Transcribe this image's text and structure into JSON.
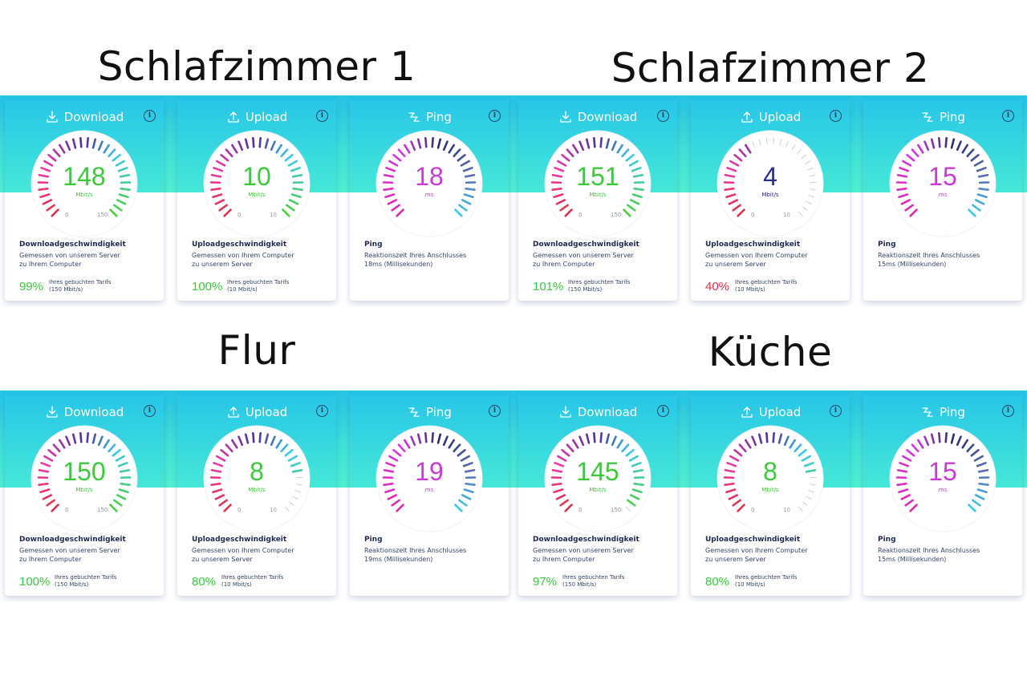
{
  "colors": {
    "green": "#3cc93c",
    "red": "#e0334a",
    "navy": "#2a2f8f",
    "magenta": "#c93ad6",
    "cyan": "#36c6e8",
    "text_dark": "#1d2b4f"
  },
  "rooms": [
    {
      "title": "Schlafzimmer 1",
      "cards": [
        {
          "type": "download",
          "label": "Download",
          "icon": "download-icon",
          "value": "148",
          "unit": "Mbit/s",
          "min": "0",
          "max": "150",
          "fraction": 0.99,
          "color": "#3cc93c",
          "title": "Downloadgeschwindigkeit",
          "desc": [
            "Gemessen von unserem Server",
            "zu Ihrem Computer"
          ],
          "pct": "99%",
          "pct_color": "#3cc93c",
          "tarif": [
            "Ihres gebuchten Tarifs",
            "(150 Mbit/s)"
          ]
        },
        {
          "type": "upload",
          "label": "Upload",
          "icon": "upload-icon",
          "value": "10",
          "unit": "Mbit/s",
          "min": "0",
          "max": "10",
          "fraction": 1.0,
          "color": "#3cc93c",
          "title": "Uploadgeschwindigkeit",
          "desc": [
            "Gemessen von Ihrem Computer",
            "zu unserem Server"
          ],
          "pct": "100%",
          "pct_color": "#3cc93c",
          "tarif": [
            "Ihres gebuchten Tarifs",
            "(10 Mbit/s)"
          ]
        },
        {
          "type": "ping",
          "label": "Ping",
          "icon": "ping-icon",
          "value": "18",
          "unit": "ms",
          "color": "#c93ad6",
          "title": "Ping",
          "desc": [
            "Reaktionszeit Ihres Anschlusses",
            "18ms (Millisekunden)"
          ]
        }
      ]
    },
    {
      "title": "Schlafzimmer 2",
      "cards": [
        {
          "type": "download",
          "label": "Download",
          "icon": "download-icon",
          "value": "151",
          "unit": "Mbit/s",
          "min": "0",
          "max": "150",
          "fraction": 1.0,
          "color": "#3cc93c",
          "title": "Downloadgeschwindigkeit",
          "desc": [
            "Gemessen von unserem Server",
            "zu Ihrem Computer"
          ],
          "pct": "101%",
          "pct_color": "#3cc93c",
          "tarif": [
            "Ihres gebuchten Tarifs",
            "(150 Mbit/s)"
          ]
        },
        {
          "type": "upload",
          "label": "Upload",
          "icon": "upload-icon",
          "value": "4",
          "unit": "Mbit/s",
          "min": "0",
          "max": "10",
          "fraction": 0.4,
          "color": "#2a2f8f",
          "title": "Uploadgeschwindigkeit",
          "desc": [
            "Gemessen von Ihrem Computer",
            "zu unserem Server"
          ],
          "pct": "40%",
          "pct_color": "#e0334a",
          "tarif": [
            "Ihres gebuchten Tarifs",
            "(10 Mbit/s)"
          ]
        },
        {
          "type": "ping",
          "label": "Ping",
          "icon": "ping-icon",
          "value": "15",
          "unit": "ms",
          "color": "#c93ad6",
          "title": "Ping",
          "desc": [
            "Reaktionszeit Ihres Anschlusses",
            "15ms (Millisekunden)"
          ]
        }
      ]
    },
    {
      "title": "Flur",
      "cards": [
        {
          "type": "download",
          "label": "Download",
          "icon": "download-icon",
          "value": "150",
          "unit": "Mbit/s",
          "min": "0",
          "max": "150",
          "fraction": 1.0,
          "color": "#3cc93c",
          "title": "Downloadgeschwindigkeit",
          "desc": [
            "Gemessen von unserem Server",
            "zu Ihrem Computer"
          ],
          "pct": "100%",
          "pct_color": "#3cc93c",
          "tarif": [
            "Ihres gebuchten Tarifs",
            "(150 Mbit/s)"
          ]
        },
        {
          "type": "upload",
          "label": "Upload",
          "icon": "upload-icon",
          "value": "8",
          "unit": "Mbit/s",
          "min": "0",
          "max": "10",
          "fraction": 0.8,
          "color": "#3cc93c",
          "title": "Uploadgeschwindigkeit",
          "desc": [
            "Gemessen von Ihrem Computer",
            "zu unserem Server"
          ],
          "pct": "80%",
          "pct_color": "#3cc93c",
          "tarif": [
            "Ihres gebuchten Tarifs",
            "(10 Mbit/s)"
          ]
        },
        {
          "type": "ping",
          "label": "Ping",
          "icon": "ping-icon",
          "value": "19",
          "unit": "ms",
          "color": "#c93ad6",
          "title": "Ping",
          "desc": [
            "Reaktionszeit Ihres Anschlusses",
            "19ms (Millisekunden)"
          ]
        }
      ]
    },
    {
      "title": "Küche",
      "cards": [
        {
          "type": "download",
          "label": "Download",
          "icon": "download-icon",
          "value": "145",
          "unit": "Mbit/s",
          "min": "0",
          "max": "150",
          "fraction": 0.97,
          "color": "#3cc93c",
          "title": "Downloadgeschwindigkeit",
          "desc": [
            "Gemessen von unserem Server",
            "zu Ihrem Computer"
          ],
          "pct": "97%",
          "pct_color": "#3cc93c",
          "tarif": [
            "Ihres gebuchten Tarifs",
            "(150 Mbit/s)"
          ]
        },
        {
          "type": "upload",
          "label": "Upload",
          "icon": "upload-icon",
          "value": "8",
          "unit": "Mbit/s",
          "min": "0",
          "max": "10",
          "fraction": 0.8,
          "color": "#3cc93c",
          "title": "Uploadgeschwindigkeit",
          "desc": [
            "Gemessen von Ihrem Computer",
            "zu unserem Server"
          ],
          "pct": "80%",
          "pct_color": "#3cc93c",
          "tarif": [
            "Ihres gebuchten Tarifs",
            "(10 Mbit/s)"
          ]
        },
        {
          "type": "ping",
          "label": "Ping",
          "icon": "ping-icon",
          "value": "15",
          "unit": "ms",
          "color": "#c93ad6",
          "title": "Ping",
          "desc": [
            "Reaktionszeit Ihres Anschlusses",
            "15ms (Millisekunden)"
          ]
        }
      ]
    }
  ]
}
